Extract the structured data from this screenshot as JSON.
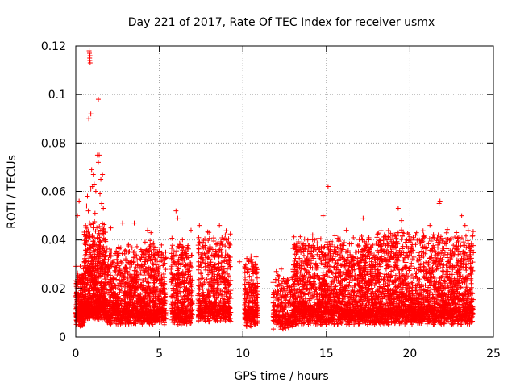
{
  "chart_data": {
    "type": "scatter",
    "title": "Day 221 of 2017, Rate Of TEC Index for receiver usmx",
    "xlabel": "GPS time / hours",
    "ylabel": "ROTI / TECUs",
    "xlim": [
      0,
      25
    ],
    "ylim": [
      0,
      0.12
    ],
    "xticks": [
      0,
      5,
      10,
      15,
      20,
      25
    ],
    "yticks": [
      0,
      0.02,
      0.04,
      0.06,
      0.08,
      0.1,
      0.12
    ],
    "ytick_labels": [
      "0",
      "0.02",
      "0.04",
      "0.06",
      "0.08",
      "0.1",
      "0.12"
    ],
    "grid": true,
    "marker": "+",
    "color": "#ff0000",
    "segments": [
      {
        "x0": 0.0,
        "x1": 0.5,
        "base": 0.012,
        "spread": 0.02,
        "n": 260
      },
      {
        "x0": 0.5,
        "x1": 1.8,
        "base": 0.015,
        "spread": 0.035,
        "n": 700
      },
      {
        "x0": 1.8,
        "x1": 3.9,
        "base": 0.013,
        "spread": 0.028,
        "n": 700
      },
      {
        "x0": 3.9,
        "x1": 5.4,
        "base": 0.013,
        "spread": 0.03,
        "n": 500
      },
      {
        "x0": 5.7,
        "x1": 7.0,
        "base": 0.013,
        "spread": 0.03,
        "n": 420
      },
      {
        "x0": 7.3,
        "x1": 9.3,
        "base": 0.014,
        "spread": 0.032,
        "n": 600
      },
      {
        "x0": 10.1,
        "x1": 10.9,
        "base": 0.012,
        "spread": 0.025,
        "n": 250
      },
      {
        "x0": 11.8,
        "x1": 13.0,
        "base": 0.011,
        "spread": 0.018,
        "n": 260
      },
      {
        "x0": 13.0,
        "x1": 18.0,
        "base": 0.013,
        "spread": 0.032,
        "n": 1700
      },
      {
        "x0": 18.0,
        "x1": 23.8,
        "base": 0.013,
        "spread": 0.034,
        "n": 2000
      }
    ],
    "outliers": [
      {
        "x": 0.8,
        "y": 0.118
      },
      {
        "x": 0.82,
        "y": 0.117
      },
      {
        "x": 0.85,
        "y": 0.116
      },
      {
        "x": 0.83,
        "y": 0.115
      },
      {
        "x": 0.84,
        "y": 0.114
      },
      {
        "x": 0.86,
        "y": 0.113
      },
      {
        "x": 0.78,
        "y": 0.09
      },
      {
        "x": 0.9,
        "y": 0.092
      },
      {
        "x": 1.35,
        "y": 0.098
      },
      {
        "x": 1.3,
        "y": 0.075
      },
      {
        "x": 1.4,
        "y": 0.075
      },
      {
        "x": 1.35,
        "y": 0.072
      },
      {
        "x": 0.95,
        "y": 0.069
      },
      {
        "x": 1.05,
        "y": 0.067
      },
      {
        "x": 1.6,
        "y": 0.067
      },
      {
        "x": 1.5,
        "y": 0.065
      },
      {
        "x": 1.1,
        "y": 0.063
      },
      {
        "x": 1.0,
        "y": 0.062
      },
      {
        "x": 0.9,
        "y": 0.061
      },
      {
        "x": 1.2,
        "y": 0.06
      },
      {
        "x": 1.45,
        "y": 0.059
      },
      {
        "x": 0.7,
        "y": 0.058
      },
      {
        "x": 0.2,
        "y": 0.056
      },
      {
        "x": 1.55,
        "y": 0.055
      },
      {
        "x": 0.65,
        "y": 0.054
      },
      {
        "x": 0.75,
        "y": 0.052
      },
      {
        "x": 1.65,
        "y": 0.053
      },
      {
        "x": 0.1,
        "y": 0.05
      },
      {
        "x": 1.15,
        "y": 0.051
      },
      {
        "x": 2.1,
        "y": 0.045
      },
      {
        "x": 2.8,
        "y": 0.047
      },
      {
        "x": 3.5,
        "y": 0.047
      },
      {
        "x": 4.3,
        "y": 0.044
      },
      {
        "x": 4.5,
        "y": 0.043
      },
      {
        "x": 6.0,
        "y": 0.052
      },
      {
        "x": 6.1,
        "y": 0.049
      },
      {
        "x": 7.4,
        "y": 0.046
      },
      {
        "x": 8.6,
        "y": 0.046
      },
      {
        "x": 6.9,
        "y": 0.044
      },
      {
        "x": 14.8,
        "y": 0.05
      },
      {
        "x": 15.1,
        "y": 0.062
      },
      {
        "x": 15.05,
        "y": 0.038
      },
      {
        "x": 17.2,
        "y": 0.049
      },
      {
        "x": 19.3,
        "y": 0.053
      },
      {
        "x": 19.5,
        "y": 0.048
      },
      {
        "x": 21.8,
        "y": 0.056
      },
      {
        "x": 21.75,
        "y": 0.055
      },
      {
        "x": 21.2,
        "y": 0.046
      },
      {
        "x": 23.1,
        "y": 0.05
      },
      {
        "x": 23.3,
        "y": 0.046
      },
      {
        "x": 20.4,
        "y": 0.043
      },
      {
        "x": 16.2,
        "y": 0.044
      },
      {
        "x": 13.3,
        "y": 0.036
      },
      {
        "x": 12.3,
        "y": 0.028
      },
      {
        "x": 10.6,
        "y": 0.029
      },
      {
        "x": 9.8,
        "y": 0.031
      },
      {
        "x": 12.0,
        "y": 0.027
      }
    ]
  }
}
